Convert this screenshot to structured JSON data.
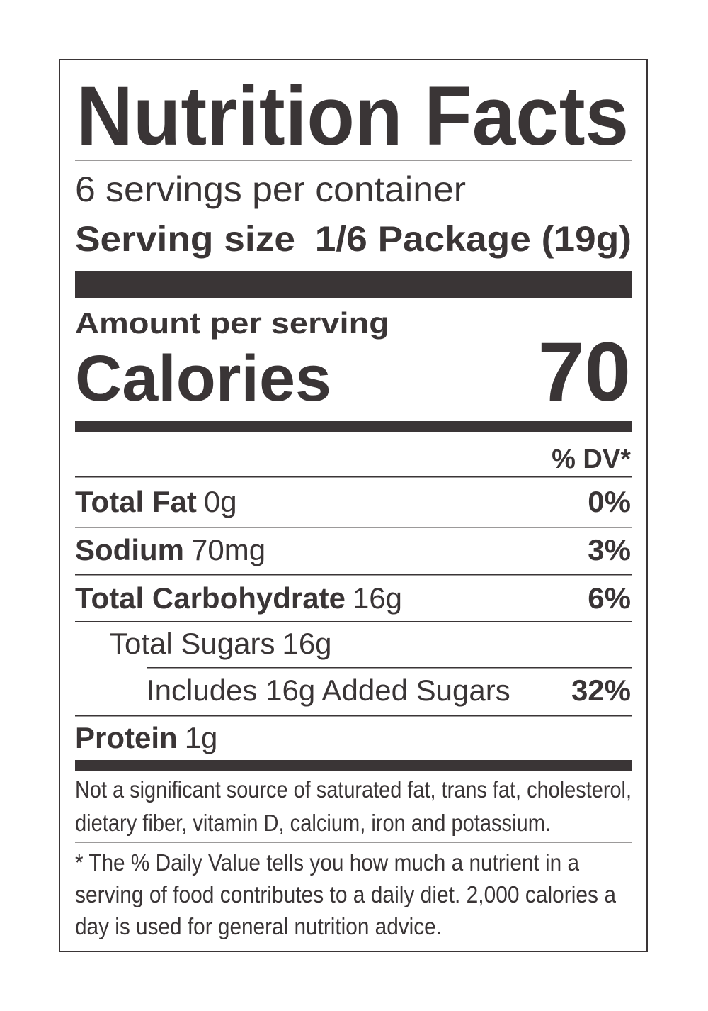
{
  "title": "Nutrition Facts",
  "servings": "6 servings per container",
  "serving_size": {
    "label": "Serving size",
    "value": "1/6 Package (19g)"
  },
  "amount_per_serving": "Amount per serving",
  "calories": {
    "label": "Calories",
    "value": 70
  },
  "dv_header": "% DV*",
  "nutrients": [
    {
      "name": "Total Fat",
      "amount": "0g",
      "dv": "0%"
    },
    {
      "name": "Sodium",
      "amount": "70mg",
      "dv": "3%"
    },
    {
      "name": "Total Carbohydrate",
      "amount": "16g",
      "dv": "6%",
      "sub": [
        {
          "name": "Total Sugars",
          "amount": "16g",
          "sub": [
            {
              "name": "Includes 16g Added Sugars",
              "dv": "32%"
            }
          ]
        }
      ]
    },
    {
      "name": "Protein",
      "amount": "1g"
    }
  ],
  "footnote_lines": [
    "Not a significant source of saturated fat, trans fat, cholesterol,",
    "dietary fiber, vitamin D, calcium, iron and potassium."
  ],
  "dv_note_lines": [
    "* The % Daily Value tells you how much a nutrient in a",
    "serving of food contributes to a daily diet. 2,000 calories a",
    "day is used for general nutrition advice."
  ]
}
